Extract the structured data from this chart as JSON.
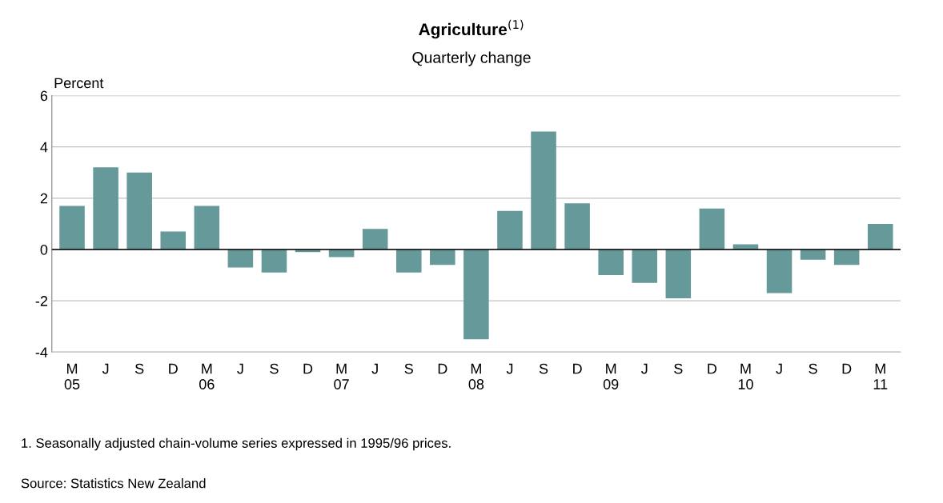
{
  "chart_data": {
    "type": "bar",
    "title": "Agriculture$^{(1)}$",
    "subtitle": "Quarterly change",
    "ylabel": "Percent",
    "categories": [
      "M\n05",
      "J",
      "S",
      "D",
      "M\n06",
      "J",
      "S",
      "D",
      "M\n07",
      "J",
      "S",
      "D",
      "M\n08",
      "J",
      "S",
      "D",
      "M\n09",
      "J",
      "S",
      "D",
      "M\n10",
      "J",
      "S",
      "D",
      "M\n11"
    ],
    "values": [
      1.7,
      3.2,
      3.0,
      0.7,
      1.7,
      -0.7,
      -0.9,
      -0.1,
      -0.3,
      0.8,
      -0.9,
      -0.6,
      -3.5,
      1.5,
      4.6,
      1.8,
      -1.0,
      -1.3,
      -1.9,
      1.6,
      0.2,
      -1.7,
      -0.4,
      -0.6,
      1.0
    ],
    "color": "#669999",
    "ylim": [
      -4,
      6
    ],
    "yticks": [
      -4,
      -2,
      0,
      2,
      4,
      6
    ],
    "grid": "y",
    "legend": false,
    "ref_lines": [
      {
        "axis": "y",
        "value": 0,
        "color": "#000000"
      }
    ],
    "annotations": [
      "1. Seasonally adjusted chain-volume series expressed in 1995/96 prices.",
      "Source: Statistics New Zealand"
    ]
  }
}
